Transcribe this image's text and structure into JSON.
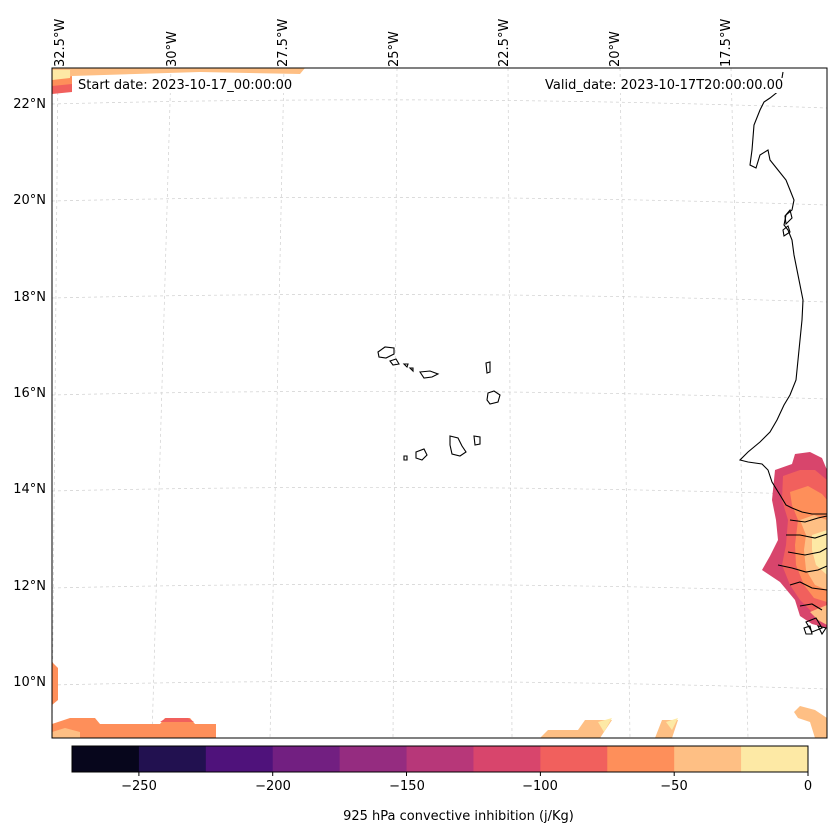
{
  "map": {
    "lon_labels": [
      "32.5°W",
      "30°W",
      "27.5°W",
      "25°W",
      "22.5°W",
      "20°W",
      "17.5°W"
    ],
    "lat_labels": [
      "22°N",
      "20°N",
      "18°N",
      "16°N",
      "14°N",
      "12°N",
      "10°N"
    ],
    "start_date": "Start date: 2023-10-17_00:00:00",
    "valid_date": "Valid_date: 2023-10-17T20:00:00.00"
  },
  "colorbar": {
    "tick_labels": [
      "−250",
      "−200",
      "−150",
      "−100",
      "−50",
      "0"
    ],
    "label": "925 hPa convective inhibition (j/Kg)",
    "colors": [
      "#07061c",
      "#221150",
      "#4f127b",
      "#721f81",
      "#952c80",
      "#b73779",
      "#d8456c",
      "#f1605d",
      "#fe8f5a",
      "#febf84",
      "#fde9a5"
    ]
  }
}
